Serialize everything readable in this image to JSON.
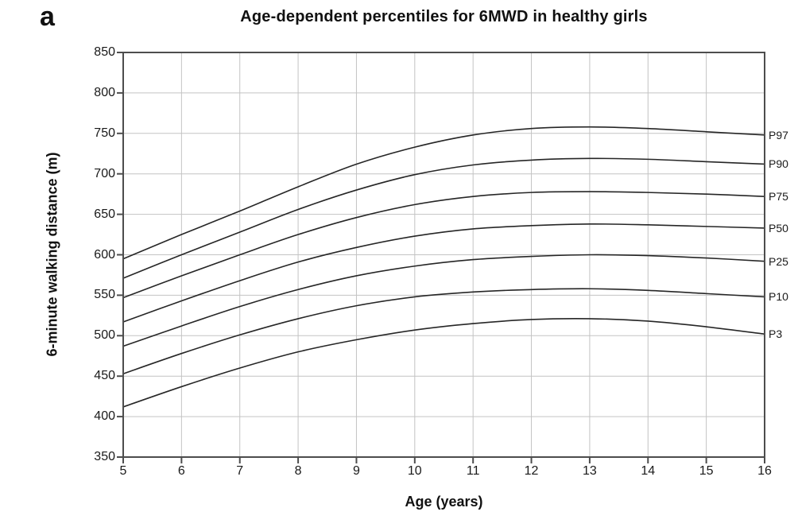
{
  "panel_label": "a",
  "title": "Age-dependent percentiles for 6MWD in healthy girls",
  "axes": {
    "x_title": "Age (years)",
    "y_title": "6-minute walking distance (m)"
  },
  "chart_data": {
    "type": "line",
    "title": "Age-dependent percentiles for 6MWD in healthy girls",
    "xlabel": "Age (years)",
    "ylabel": "6-minute walking distance (m)",
    "xlim": [
      5,
      16
    ],
    "ylim": [
      350,
      850
    ],
    "x_ticks": [
      5,
      6,
      7,
      8,
      9,
      10,
      11,
      12,
      13,
      14,
      15,
      16
    ],
    "y_ticks": [
      350,
      400,
      450,
      500,
      550,
      600,
      650,
      700,
      750,
      800,
      850
    ],
    "grid": true,
    "legend_position": "labels-at-right-edge",
    "x": [
      5,
      6,
      7,
      8,
      9,
      10,
      11,
      12,
      13,
      14,
      15,
      16
    ],
    "series": [
      {
        "name": "P97",
        "values": [
          595,
          625,
          654,
          684,
          712,
          733,
          748,
          756,
          758,
          756,
          752,
          748
        ]
      },
      {
        "name": "P90",
        "values": [
          571,
          600,
          628,
          656,
          680,
          699,
          711,
          717,
          719,
          718,
          715,
          712
        ]
      },
      {
        "name": "P75",
        "values": [
          547,
          574,
          600,
          625,
          646,
          662,
          672,
          677,
          678,
          677,
          675,
          672
        ]
      },
      {
        "name": "P50",
        "values": [
          517,
          543,
          568,
          591,
          609,
          623,
          632,
          636,
          638,
          637,
          635,
          633
        ]
      },
      {
        "name": "P25",
        "values": [
          487,
          512,
          536,
          557,
          574,
          586,
          594,
          598,
          600,
          599,
          596,
          592
        ]
      },
      {
        "name": "P10",
        "values": [
          453,
          478,
          501,
          521,
          537,
          548,
          554,
          557,
          558,
          556,
          552,
          548
        ]
      },
      {
        "name": "P3",
        "values": [
          412,
          437,
          460,
          480,
          495,
          507,
          515,
          520,
          521,
          518,
          511,
          502
        ]
      }
    ],
    "colors": {
      "curve": "#262626",
      "grid": "#c3c3c3",
      "frame": "#4d4d4d",
      "text": "#1a1a1a",
      "background": "#ffffff"
    }
  }
}
